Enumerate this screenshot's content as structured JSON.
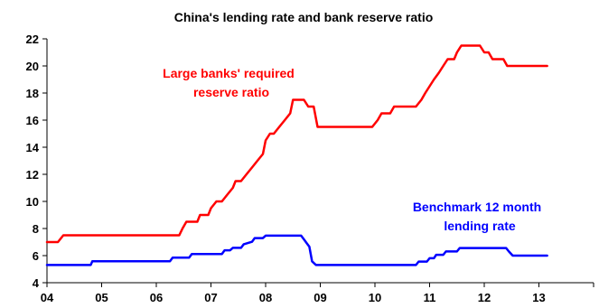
{
  "chart_data": {
    "type": "line",
    "title": "China's lending rate and bank reserve ratio",
    "xlabel": "",
    "ylabel": "",
    "xlim": [
      2004.0,
      2014.0
    ],
    "ylim": [
      4,
      22
    ],
    "x_ticks": [
      "04",
      "05",
      "06",
      "07",
      "08",
      "09",
      "10",
      "11",
      "12",
      "13"
    ],
    "y_ticks": [
      "4",
      "6",
      "8",
      "10",
      "12",
      "14",
      "16",
      "18",
      "20",
      "22"
    ],
    "grid": false,
    "legend": "none",
    "annotations": {
      "rrr_line1": "Large banks' required",
      "rrr_line2": "reserve ratio",
      "lending_line1": "Benchmark 12 month",
      "lending_line2": "lending rate"
    },
    "series": [
      {
        "name": "Large banks' required reserve ratio",
        "color": "#ff0000",
        "points": [
          [
            2004.0,
            7.0
          ],
          [
            2004.2,
            7.0
          ],
          [
            2004.3,
            7.5
          ],
          [
            2006.42,
            7.5
          ],
          [
            2006.48,
            8.0
          ],
          [
            2006.55,
            8.5
          ],
          [
            2006.75,
            8.5
          ],
          [
            2006.8,
            9.0
          ],
          [
            2006.95,
            9.0
          ],
          [
            2007.0,
            9.5
          ],
          [
            2007.1,
            10.0
          ],
          [
            2007.2,
            10.0
          ],
          [
            2007.3,
            10.5
          ],
          [
            2007.4,
            11.0
          ],
          [
            2007.45,
            11.5
          ],
          [
            2007.55,
            11.5
          ],
          [
            2007.65,
            12.0
          ],
          [
            2007.75,
            12.5
          ],
          [
            2007.85,
            13.0
          ],
          [
            2007.95,
            13.5
          ],
          [
            2008.0,
            14.5
          ],
          [
            2008.08,
            15.0
          ],
          [
            2008.15,
            15.0
          ],
          [
            2008.25,
            15.5
          ],
          [
            2008.35,
            16.0
          ],
          [
            2008.45,
            16.5
          ],
          [
            2008.5,
            17.5
          ],
          [
            2008.7,
            17.5
          ],
          [
            2008.78,
            17.0
          ],
          [
            2008.88,
            17.0
          ],
          [
            2008.95,
            15.5
          ],
          [
            2009.95,
            15.5
          ],
          [
            2010.05,
            16.0
          ],
          [
            2010.12,
            16.5
          ],
          [
            2010.28,
            16.5
          ],
          [
            2010.35,
            17.0
          ],
          [
            2010.75,
            17.0
          ],
          [
            2010.85,
            17.5
          ],
          [
            2010.92,
            18.0
          ],
          [
            2011.0,
            18.5
          ],
          [
            2011.08,
            19.0
          ],
          [
            2011.17,
            19.5
          ],
          [
            2011.25,
            20.0
          ],
          [
            2011.33,
            20.5
          ],
          [
            2011.45,
            20.5
          ],
          [
            2011.5,
            21.0
          ],
          [
            2011.58,
            21.5
          ],
          [
            2011.92,
            21.5
          ],
          [
            2012.0,
            21.0
          ],
          [
            2012.08,
            21.0
          ],
          [
            2012.15,
            20.5
          ],
          [
            2012.35,
            20.5
          ],
          [
            2012.42,
            20.0
          ],
          [
            2013.15,
            20.0
          ]
        ]
      },
      {
        "name": "Benchmark 12 month lending rate",
        "color": "#0000ff",
        "points": [
          [
            2004.0,
            5.31
          ],
          [
            2004.8,
            5.31
          ],
          [
            2004.83,
            5.58
          ],
          [
            2006.25,
            5.58
          ],
          [
            2006.3,
            5.85
          ],
          [
            2006.6,
            5.85
          ],
          [
            2006.65,
            6.12
          ],
          [
            2007.2,
            6.12
          ],
          [
            2007.25,
            6.39
          ],
          [
            2007.35,
            6.39
          ],
          [
            2007.4,
            6.57
          ],
          [
            2007.55,
            6.57
          ],
          [
            2007.6,
            6.84
          ],
          [
            2007.75,
            7.02
          ],
          [
            2007.8,
            7.29
          ],
          [
            2007.95,
            7.29
          ],
          [
            2008.0,
            7.47
          ],
          [
            2008.65,
            7.47
          ],
          [
            2008.7,
            7.2
          ],
          [
            2008.75,
            6.93
          ],
          [
            2008.8,
            6.66
          ],
          [
            2008.85,
            5.58
          ],
          [
            2008.92,
            5.31
          ],
          [
            2010.75,
            5.31
          ],
          [
            2010.8,
            5.56
          ],
          [
            2010.95,
            5.56
          ],
          [
            2011.0,
            5.81
          ],
          [
            2011.08,
            5.81
          ],
          [
            2011.12,
            6.06
          ],
          [
            2011.25,
            6.06
          ],
          [
            2011.3,
            6.31
          ],
          [
            2011.5,
            6.31
          ],
          [
            2011.55,
            6.56
          ],
          [
            2012.4,
            6.56
          ],
          [
            2012.45,
            6.31
          ],
          [
            2012.52,
            6.0
          ],
          [
            2013.15,
            6.0
          ]
        ]
      }
    ]
  }
}
